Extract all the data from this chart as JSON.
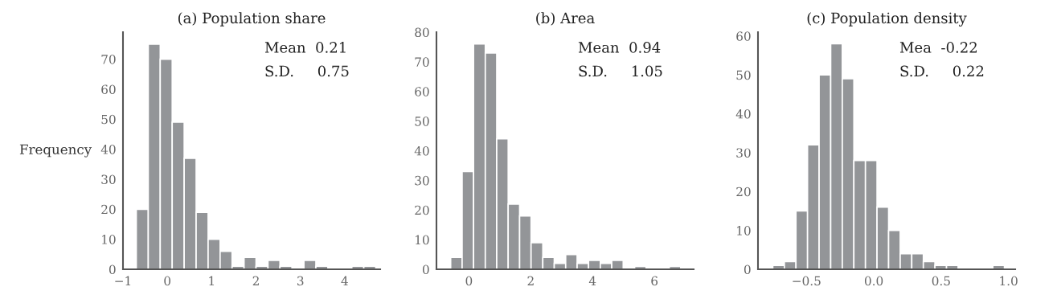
{
  "chart_data": [
    {
      "type": "histogram",
      "title": "(a) Population share",
      "ylabel": "Frequency",
      "color": "#939598",
      "bins": [
        -0.7,
        -0.43,
        -0.16,
        0.11,
        0.38,
        0.65,
        0.92,
        1.19,
        1.46,
        1.73,
        2.0,
        2.27,
        2.54,
        2.81,
        3.08,
        3.35,
        3.62,
        3.89,
        4.16,
        4.43,
        4.7
      ],
      "values": [
        20,
        75,
        70,
        49,
        37,
        19,
        10,
        6,
        1,
        4,
        1,
        3,
        1,
        0,
        3,
        1,
        0,
        0,
        1,
        1
      ],
      "xlim": [
        -1,
        4.8
      ],
      "xticks": [
        {
          "value": -1,
          "label": "−1"
        },
        0,
        1,
        2,
        3,
        4
      ],
      "ylim": [
        0,
        79
      ],
      "yticks": [
        0,
        10,
        20,
        30,
        40,
        50,
        60,
        70
      ],
      "annotations": [
        "Mean  0.21",
        "S.D.     0.75"
      ],
      "grid": false
    },
    {
      "type": "histogram",
      "title": "(b) Area",
      "color": "#939598",
      "bins": [
        -0.59,
        -0.22,
        0.15,
        0.53,
        0.9,
        1.27,
        1.64,
        2.01,
        2.39,
        2.76,
        3.13,
        3.5,
        3.87,
        4.25,
        4.62,
        4.99,
        5.36,
        5.73,
        6.11,
        6.48,
        6.85
      ],
      "values": [
        4,
        33,
        76,
        73,
        44,
        22,
        18,
        9,
        4,
        2,
        5,
        2,
        3,
        2,
        3,
        0,
        1,
        0,
        0,
        1
      ],
      "xlim": [
        -1.05,
        7.27
      ],
      "xticks": [
        0,
        2,
        4,
        6
      ],
      "ylim": [
        0,
        80
      ],
      "yticks": [
        0,
        10,
        20,
        30,
        40,
        50,
        60,
        70,
        80
      ],
      "annotations": [
        "Mean  0.94",
        "S.D.     1.05"
      ],
      "grid": false
    },
    {
      "type": "histogram",
      "title": "(c) Population density",
      "color": "#939598",
      "bins": [
        -0.75,
        -0.664,
        -0.578,
        -0.492,
        -0.406,
        -0.32,
        -0.234,
        -0.148,
        -0.062,
        0.024,
        0.11,
        0.196,
        0.282,
        0.368,
        0.454,
        0.54,
        0.626,
        0.712,
        0.798,
        0.884,
        0.97
      ],
      "values": [
        1,
        2,
        15,
        32,
        50,
        58,
        49,
        28,
        28,
        16,
        10,
        4,
        4,
        2,
        1,
        1,
        0,
        0,
        0,
        1
      ],
      "xlim": [
        -0.86,
        1.05
      ],
      "xticks": [
        {
          "value": -0.5,
          "label": "−0.5"
        },
        {
          "value": 0,
          "label": "0.0"
        },
        0.5,
        {
          "value": 1,
          "label": "1.0"
        }
      ],
      "ylim": [
        0,
        61
      ],
      "yticks": [
        0,
        10,
        20,
        30,
        40,
        50,
        60
      ],
      "annotations": [
        "Mea  -0.22",
        "S.D.     0.22"
      ],
      "grid": false
    }
  ]
}
